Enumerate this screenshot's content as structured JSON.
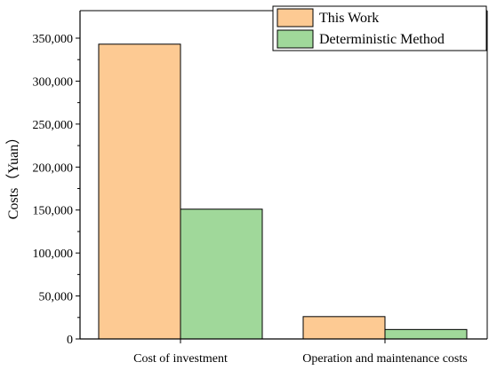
{
  "chart_data": {
    "type": "bar",
    "categories": [
      "Cost of investment",
      "Operation and maintenance costs"
    ],
    "series": [
      {
        "name": "This Work",
        "values": [
          343000,
          26000
        ],
        "color": "#fdca93"
      },
      {
        "name": "Deterministic Method",
        "values": [
          151000,
          11000
        ],
        "color": "#a0d89a"
      }
    ],
    "ylabel": "Costs（Yuan）",
    "xlabel": "",
    "ylim": [
      0,
      350000
    ],
    "yticks": [
      0,
      50000,
      100000,
      150000,
      200000,
      250000,
      300000,
      350000
    ],
    "ytick_labels": [
      "0",
      "50,000",
      "100,000",
      "150,000",
      "200,000",
      "250,000",
      "300,000",
      "350,000"
    ],
    "legend_position": "top-right",
    "grid": false
  }
}
